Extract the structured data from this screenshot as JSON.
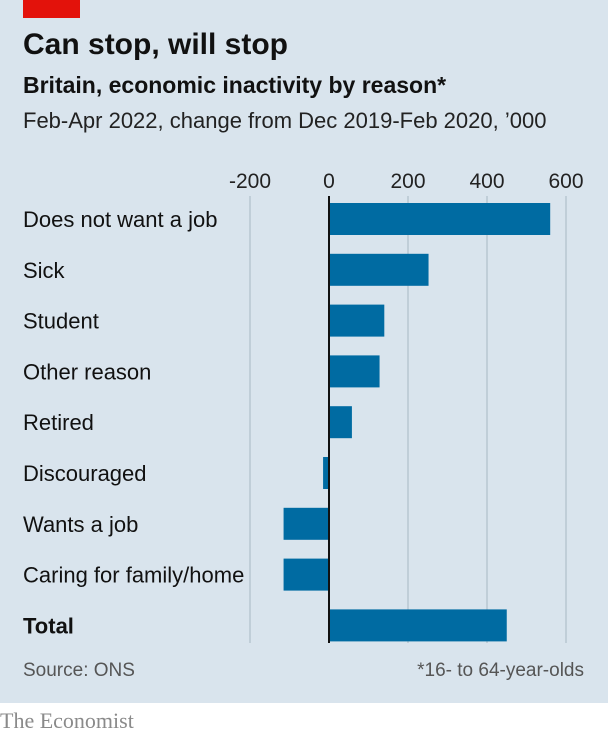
{
  "title": "Can stop, will stop",
  "subtitle": "Britain, economic inactivity by reason*",
  "caption": "Feb-Apr 2022, change from Dec 2019-Feb 2020, ’000",
  "source": "Source: ONS",
  "footnote": "*16- to 64-year-olds",
  "brand": "The Economist",
  "colors": {
    "bar": "#006ba2",
    "background": "#d9e4ed",
    "accent": "#e3120b"
  },
  "chart_data": {
    "type": "bar",
    "orientation": "horizontal",
    "xlim": [
      -200,
      600
    ],
    "x_ticks": [
      -200,
      0,
      200,
      400,
      600
    ],
    "x_tick_labels": [
      "-200",
      "0",
      "200",
      "400",
      "600"
    ],
    "grid": true,
    "categories": [
      "Does not want a job",
      "Sick",
      "Student",
      "Other reason",
      "Retired",
      "Discouraged",
      "Wants a job",
      "Caring for family/home",
      "Total"
    ],
    "values": [
      560,
      252,
      140,
      128,
      58,
      -15,
      -115,
      -115,
      450
    ],
    "bold_categories": [
      "Total"
    ]
  }
}
